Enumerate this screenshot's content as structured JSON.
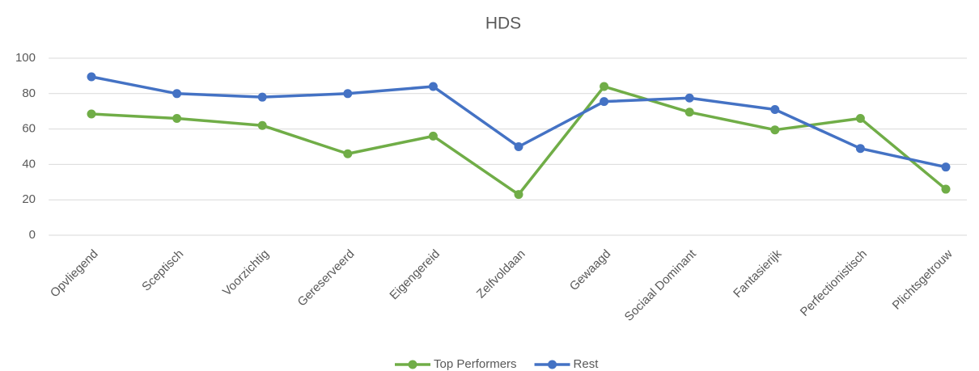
{
  "chart_data": {
    "type": "line",
    "title": "HDS",
    "categories": [
      "Opvliegend",
      "Sceptisch",
      "Voorzichtig",
      "Gereserveerd",
      "Eigengereid",
      "Zelfvoldaan",
      "Gewaagd",
      "Sociaal Dominant",
      "Fantasierijk",
      "Perfectionistisch",
      "Plichtsgetrouw"
    ],
    "series": [
      {
        "name": "Top Performers",
        "color": "#70ad47",
        "values": [
          68.5,
          66,
          62,
          46,
          56,
          23,
          84,
          69.5,
          59.5,
          66,
          26
        ]
      },
      {
        "name": "Rest",
        "color": "#4472c4",
        "values": [
          89.5,
          80,
          78,
          80,
          84,
          50,
          75.5,
          77.5,
          71,
          49,
          38.5
        ]
      }
    ],
    "ylim": [
      0,
      100
    ],
    "yticks": [
      0,
      20,
      40,
      60,
      80,
      100
    ],
    "grid": true,
    "legend": "bottom"
  }
}
